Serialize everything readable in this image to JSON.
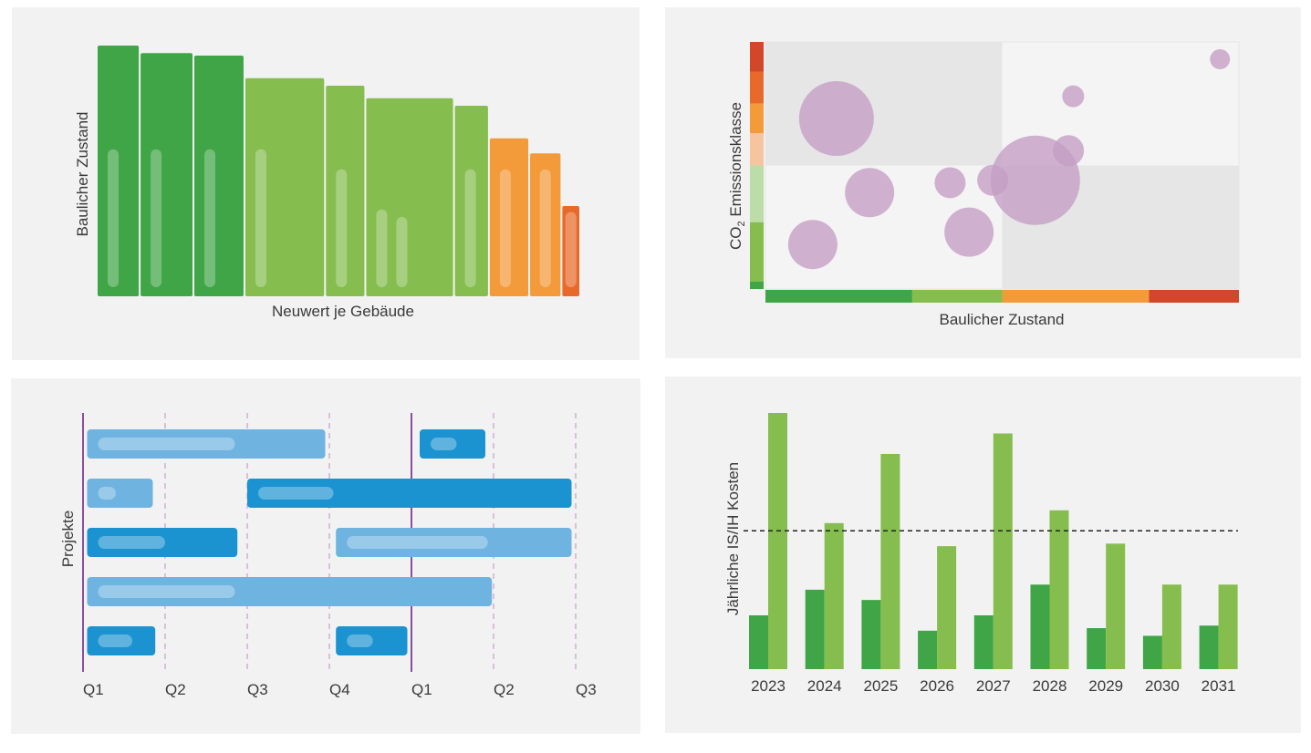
{
  "colors": {
    "panel_bg": "#f2f2f2",
    "green_dark": "#3fa546",
    "green_light": "#86bd4f",
    "orange": "#f39a3b",
    "orange_red": "#e86a2a",
    "red": "#d2462a",
    "purple_bubble": "#c49ec4",
    "purple_line": "#8a4f9a",
    "blue_dark": "#1b93d0",
    "blue_light": "#6fb3e0"
  },
  "chart_data": [
    {
      "type": "bar",
      "id": "zustand-neuwert",
      "xlabel": "Neuwert je Gebäude",
      "ylabel": "Baulicher Zustand",
      "ylim": [
        0,
        100
      ],
      "note_x": "bar width proportional to Neuwert, bar height = Baulicher Zustand",
      "bars": [
        {
          "width": 8,
          "value": 100,
          "color": "green_dark",
          "inner": [
            55
          ]
        },
        {
          "width": 10,
          "value": 97,
          "color": "green_dark",
          "inner": [
            55
          ]
        },
        {
          "width": 9.5,
          "value": 96,
          "color": "green_dark",
          "inner": [
            55
          ]
        },
        {
          "width": 15,
          "value": 87,
          "color": "green_light",
          "inner": [
            55
          ]
        },
        {
          "width": 7.5,
          "value": 84,
          "color": "green_light",
          "inner": [
            47
          ]
        },
        {
          "width": 16.5,
          "value": 79,
          "color": "green_light",
          "inner": [
            31,
            28
          ]
        },
        {
          "width": 6.5,
          "value": 76,
          "color": "green_light",
          "inner": [
            47
          ]
        },
        {
          "width": 7.5,
          "value": 63,
          "color": "orange",
          "inner": [
            47
          ]
        },
        {
          "width": 6,
          "value": 57,
          "color": "orange",
          "inner": [
            47
          ]
        },
        {
          "width": 3.5,
          "value": 36,
          "color": "orange_red",
          "inner": [
            30
          ]
        }
      ]
    },
    {
      "type": "scatter",
      "id": "portfolio-matrix",
      "xlabel": "Baulicher Zustand",
      "ylabel_prefix": "CO",
      "ylabel_sub": "2",
      "ylabel_suffix": " Emissionsklasse",
      "xlim": [
        0,
        100
      ],
      "ylim": [
        0,
        100
      ],
      "x_scale_segments": [
        {
          "from": 0,
          "to": 31,
          "color": "green_dark"
        },
        {
          "from": 31,
          "to": 50,
          "color": "green_light"
        },
        {
          "from": 50,
          "to": 81,
          "color": "orange"
        },
        {
          "from": 81,
          "to": 100,
          "color": "red"
        }
      ],
      "y_scale_segments": [
        {
          "from": 100,
          "to": 88,
          "color": "red"
        },
        {
          "from": 88,
          "to": 75,
          "color": "orange_red"
        },
        {
          "from": 75,
          "to": 63,
          "color": "orange"
        },
        {
          "from": 63,
          "to": 50,
          "color": "#f7c4a0"
        },
        {
          "from": 50,
          "to": 27,
          "color": "#bcdca8"
        },
        {
          "from": 27,
          "to": 3,
          "color": "green_light"
        },
        {
          "from": 3,
          "to": 0,
          "color": "green_dark"
        }
      ],
      "points": [
        {
          "x": 15,
          "y": 69,
          "r": 41
        },
        {
          "x": 22,
          "y": 39,
          "r": 27
        },
        {
          "x": 10,
          "y": 18,
          "r": 27
        },
        {
          "x": 39,
          "y": 43,
          "r": 17
        },
        {
          "x": 43,
          "y": 23,
          "r": 27
        },
        {
          "x": 48,
          "y": 44,
          "r": 17
        },
        {
          "x": 57,
          "y": 44,
          "r": 49
        },
        {
          "x": 64,
          "y": 56,
          "r": 17
        },
        {
          "x": 65,
          "y": 78,
          "r": 12
        },
        {
          "x": 96,
          "y": 93,
          "r": 11
        }
      ]
    },
    {
      "type": "bar",
      "id": "projekte-zeitplan",
      "ylabel": "Projekte",
      "x_ticks": [
        "Q1",
        "Q2",
        "Q3",
        "Q4",
        "Q1",
        "Q2",
        "Q3"
      ],
      "year_boundaries": [
        0,
        4
      ],
      "rows": [
        [
          {
            "start": 0.05,
            "end": 2.95,
            "style": "light",
            "progress": 1.8
          },
          {
            "start": 4.1,
            "end": 4.9,
            "style": "dark",
            "progress": 0.45
          }
        ],
        [
          {
            "start": 0.05,
            "end": 0.85,
            "style": "light",
            "progress": 0.35
          },
          {
            "start": 2.0,
            "end": 5.95,
            "style": "dark",
            "progress": 1.05
          }
        ],
        [
          {
            "start": 0.05,
            "end": 1.88,
            "style": "dark",
            "progress": 0.95
          },
          {
            "start": 3.08,
            "end": 5.95,
            "style": "light",
            "progress": 1.85
          }
        ],
        [
          {
            "start": 0.05,
            "end": 4.98,
            "style": "light",
            "progress": 1.8
          }
        ],
        [
          {
            "start": 0.05,
            "end": 0.88,
            "style": "dark",
            "progress": 0.55
          },
          {
            "start": 3.08,
            "end": 3.95,
            "style": "dark",
            "progress": 0.45
          }
        ]
      ]
    },
    {
      "type": "bar",
      "id": "jaehrliche-kosten",
      "ylabel": "Jährliche IS/IH Kosten",
      "categories": [
        "2023",
        "2024",
        "2025",
        "2026",
        "2027",
        "2028",
        "2029",
        "2030",
        "2031"
      ],
      "ylim": [
        0,
        100
      ],
      "reference_line": 54,
      "series": [
        {
          "color": "green_dark",
          "values": [
            21,
            31,
            27,
            15,
            21,
            33,
            16,
            13,
            17
          ]
        },
        {
          "color": "green_light",
          "values": [
            100,
            57,
            84,
            48,
            92,
            62,
            49,
            33,
            33
          ]
        }
      ]
    }
  ]
}
